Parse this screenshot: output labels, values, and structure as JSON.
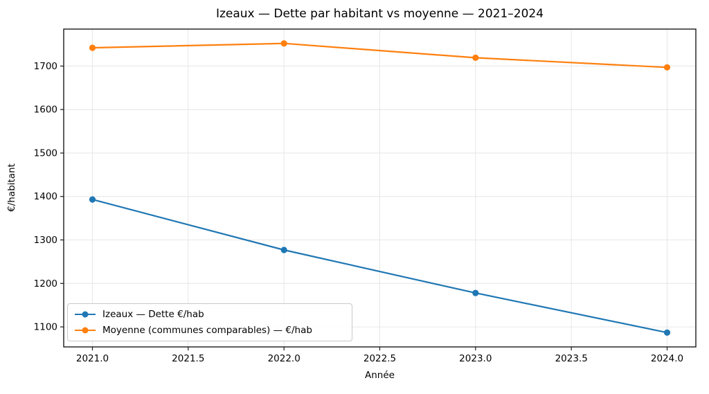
{
  "chart_data": {
    "type": "line",
    "title": "Izeaux — Dette par habitant vs moyenne — 2021–2024",
    "xlabel": "Année",
    "ylabel": "€/habitant",
    "x": [
      2021,
      2022,
      2023,
      2024
    ],
    "series": [
      {
        "name": "Izeaux — Dette €/hab",
        "color": "#1f77b4",
        "values": [
          1393,
          1277,
          1178,
          1087
        ]
      },
      {
        "name": "Moyenne (communes comparables) — €/hab",
        "color": "#ff7f0e",
        "values": [
          1742,
          1752,
          1719,
          1697
        ]
      }
    ],
    "x_ticks": [
      2021.0,
      2021.5,
      2022.0,
      2022.5,
      2023.0,
      2023.5,
      2024.0
    ],
    "x_tick_labels": [
      "2021.0",
      "2021.5",
      "2022.0",
      "2022.5",
      "2023.0",
      "2023.5",
      "2024.0"
    ],
    "y_ticks": [
      1100,
      1200,
      1300,
      1400,
      1500,
      1600,
      1700
    ],
    "y_tick_labels": [
      "1100",
      "1200",
      "1300",
      "1400",
      "1500",
      "1600",
      "1700"
    ],
    "xlim": [
      2020.85,
      2024.15
    ],
    "ylim": [
      1054,
      1785
    ],
    "grid": true,
    "legend_position": "lower left",
    "colors": {
      "grid": "#e6e6e6",
      "spine": "#1a1a1a",
      "tick_text": "#000000",
      "background": "#ffffff"
    }
  }
}
